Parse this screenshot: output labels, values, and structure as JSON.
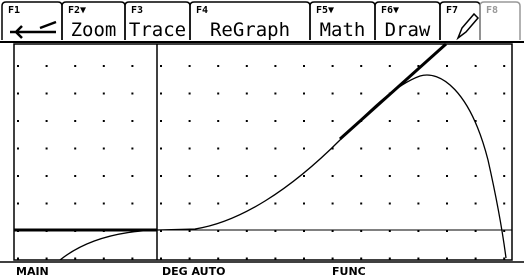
{
  "toolbar": {
    "tabs": [
      {
        "key": "F1",
        "label": ""
      },
      {
        "key": "F2▼",
        "label": "Zoom"
      },
      {
        "key": "F3",
        "label": "Trace"
      },
      {
        "key": "F4",
        "label": "ReGraph"
      },
      {
        "key": "F5▼",
        "label": "Math"
      },
      {
        "key": "F6▼",
        "label": "Draw"
      },
      {
        "key": "F7",
        "label": ""
      },
      {
        "key": "F8",
        "label": ""
      }
    ]
  },
  "status_bar": {
    "folder": "MAIN",
    "mode": "DEG AUTO",
    "graph_mode": "FUNC"
  }
}
